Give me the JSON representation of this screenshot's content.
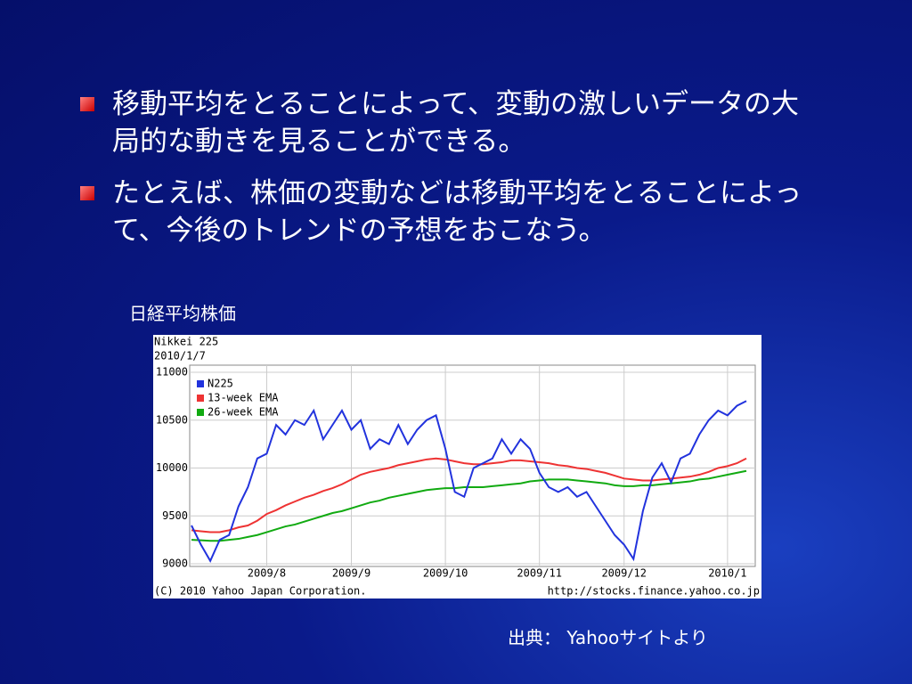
{
  "bullets": [
    "移動平均をとることによって、変動の激しいデータの大局的な動きを見ることができる。",
    "たとえば、株価の変動などは移動平均をとることによって、今後のトレンドの予想をおこなう。"
  ],
  "chart_caption": "日経平均株価",
  "source": "出典： Yahooサイトより",
  "chart_data": {
    "type": "line",
    "title": "Nikkei 225",
    "subtitle": "2010/1/7",
    "copyright": "(C) 2010 Yahoo Japan Corporation.",
    "url": "http://stocks.finance.yahoo.co.jp",
    "categories": [
      null,
      null,
      null,
      null,
      null,
      null,
      null,
      null,
      "2009/8",
      null,
      null,
      null,
      null,
      null,
      null,
      null,
      null,
      "2009/9",
      null,
      null,
      null,
      null,
      null,
      null,
      null,
      null,
      null,
      "2009/10",
      null,
      null,
      null,
      null,
      null,
      null,
      null,
      null,
      null,
      "2009/11",
      null,
      null,
      null,
      null,
      null,
      null,
      null,
      null,
      "2009/12",
      null,
      null,
      null,
      null,
      null,
      null,
      null,
      null,
      null,
      null,
      "2010/1",
      null,
      null
    ],
    "ylim": [
      9000,
      11000
    ],
    "yticks": [
      9000,
      9500,
      10000,
      10500,
      11000
    ],
    "grid": true,
    "series": [
      {
        "name": "N225",
        "color": "#2233dd",
        "values": [
          9400,
          9200,
          9030,
          9250,
          9300,
          9600,
          9800,
          10100,
          10150,
          10450,
          10350,
          10500,
          10450,
          10600,
          10300,
          10450,
          10600,
          10400,
          10500,
          10200,
          10300,
          10250,
          10450,
          10250,
          10400,
          10500,
          10550,
          10200,
          9750,
          9700,
          10000,
          10050,
          10100,
          10300,
          10150,
          10300,
          10200,
          9950,
          9800,
          9750,
          9800,
          9700,
          9750,
          9600,
          9450,
          9300,
          9200,
          9050,
          9550,
          9900,
          10050,
          9850,
          10100,
          10150,
          10350,
          10500,
          10600,
          10550,
          10650,
          10700
        ]
      },
      {
        "name": "13-week EMA",
        "color": "#ee3333",
        "values": [
          9350,
          9340,
          9330,
          9330,
          9350,
          9380,
          9400,
          9450,
          9520,
          9560,
          9610,
          9650,
          9690,
          9720,
          9760,
          9790,
          9830,
          9880,
          9930,
          9960,
          9980,
          10000,
          10030,
          10050,
          10070,
          10090,
          10100,
          10090,
          10070,
          10050,
          10040,
          10040,
          10050,
          10060,
          10080,
          10080,
          10070,
          10060,
          10050,
          10030,
          10020,
          10000,
          9990,
          9970,
          9950,
          9920,
          9890,
          9880,
          9870,
          9870,
          9880,
          9890,
          9900,
          9910,
          9930,
          9960,
          10000,
          10020,
          10050,
          10100
        ]
      },
      {
        "name": "26-week EMA",
        "color": "#11aa11",
        "values": [
          9250,
          9245,
          9240,
          9240,
          9250,
          9260,
          9280,
          9300,
          9330,
          9360,
          9390,
          9410,
          9440,
          9470,
          9500,
          9530,
          9550,
          9580,
          9610,
          9640,
          9660,
          9690,
          9710,
          9730,
          9750,
          9770,
          9780,
          9790,
          9790,
          9800,
          9800,
          9800,
          9810,
          9820,
          9830,
          9840,
          9860,
          9870,
          9880,
          9880,
          9880,
          9870,
          9860,
          9850,
          9840,
          9820,
          9810,
          9810,
          9820,
          9820,
          9830,
          9840,
          9850,
          9860,
          9880,
          9890,
          9910,
          9930,
          9950,
          9970
        ]
      }
    ]
  }
}
